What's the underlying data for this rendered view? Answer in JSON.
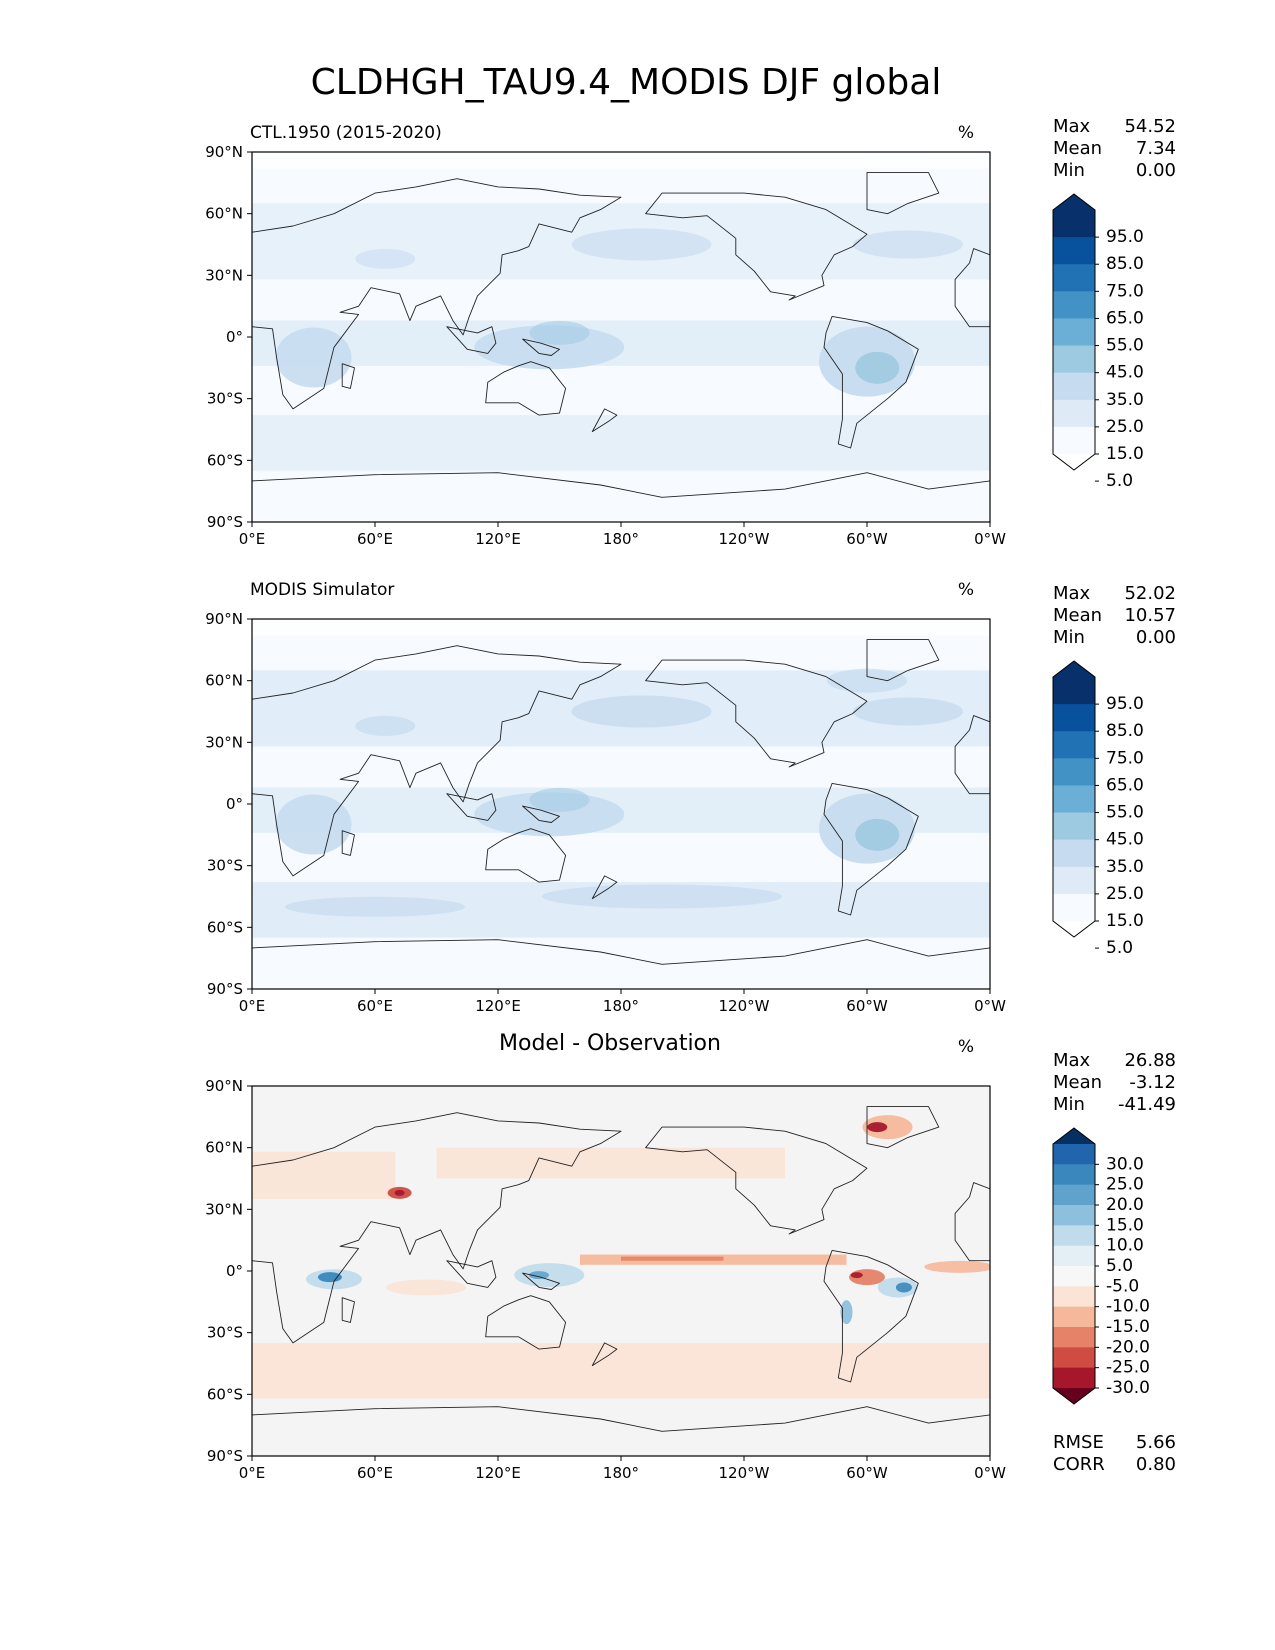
{
  "figure": {
    "title": "CLDHGH_TAU9.4_MODIS DJF global",
    "lon_ticks": [
      "0°E",
      "60°E",
      "120°E",
      "180°",
      "120°W",
      "60°W",
      "0°W"
    ],
    "lat_ticks": [
      "90°N",
      "60°N",
      "30°N",
      "0°",
      "30°S",
      "60°S",
      "90°S"
    ]
  },
  "panels": [
    {
      "left_title": "CTL.1950 (2015-2020)",
      "center_title": "",
      "units": "%",
      "stats": [
        {
          "label": "Max",
          "value": "54.52"
        },
        {
          "label": "Mean",
          "value": "7.34"
        },
        {
          "label": "Min",
          "value": "0.00"
        }
      ],
      "colorbar": {
        "labels": [
          "95.0",
          "85.0",
          "75.0",
          "65.0",
          "55.0",
          "45.0",
          "35.0",
          "25.0",
          "15.0",
          "5.0"
        ],
        "colors": [
          "#08306b",
          "#08519c",
          "#2171b5",
          "#4292c6",
          "#6baed6",
          "#9ecae1",
          "#c6dbef",
          "#deebf7",
          "#f7fbff"
        ]
      },
      "extra": []
    },
    {
      "left_title": "MODIS Simulator",
      "center_title": "",
      "units": "%",
      "stats": [
        {
          "label": "Max",
          "value": "52.02"
        },
        {
          "label": "Mean",
          "value": "10.57"
        },
        {
          "label": "Min",
          "value": "0.00"
        }
      ],
      "colorbar": {
        "labels": [
          "95.0",
          "85.0",
          "75.0",
          "65.0",
          "55.0",
          "45.0",
          "35.0",
          "25.0",
          "15.0",
          "5.0"
        ],
        "colors": [
          "#08306b",
          "#08519c",
          "#2171b5",
          "#4292c6",
          "#6baed6",
          "#9ecae1",
          "#c6dbef",
          "#deebf7",
          "#f7fbff"
        ]
      },
      "extra": []
    },
    {
      "left_title": "",
      "center_title": "Model - Observation",
      "units": "%",
      "stats": [
        {
          "label": "Max",
          "value": "26.88"
        },
        {
          "label": "Mean",
          "value": "-3.12"
        },
        {
          "label": "Min",
          "value": "-41.49"
        }
      ],
      "colorbar": {
        "labels": [
          "30.0",
          "25.0",
          "20.0",
          "15.0",
          "10.0",
          "5.0",
          "-5.0",
          "-10.0",
          "-15.0",
          "-20.0",
          "-25.0",
          "-30.0"
        ],
        "colors": [
          "#2166ac",
          "#3a87bd",
          "#5fa2cb",
          "#8dc0dd",
          "#c0dbeb",
          "#e3eef5",
          "#f7f7f7",
          "#fbe3d6",
          "#f6b89a",
          "#e58267",
          "#ce4c42",
          "#a6172b",
          "#67001f"
        ],
        "top_cap": "#053061"
      },
      "extra": [
        {
          "label": "RMSE",
          "value": "5.66"
        },
        {
          "label": "CORR",
          "value": "0.80"
        }
      ]
    }
  ]
}
